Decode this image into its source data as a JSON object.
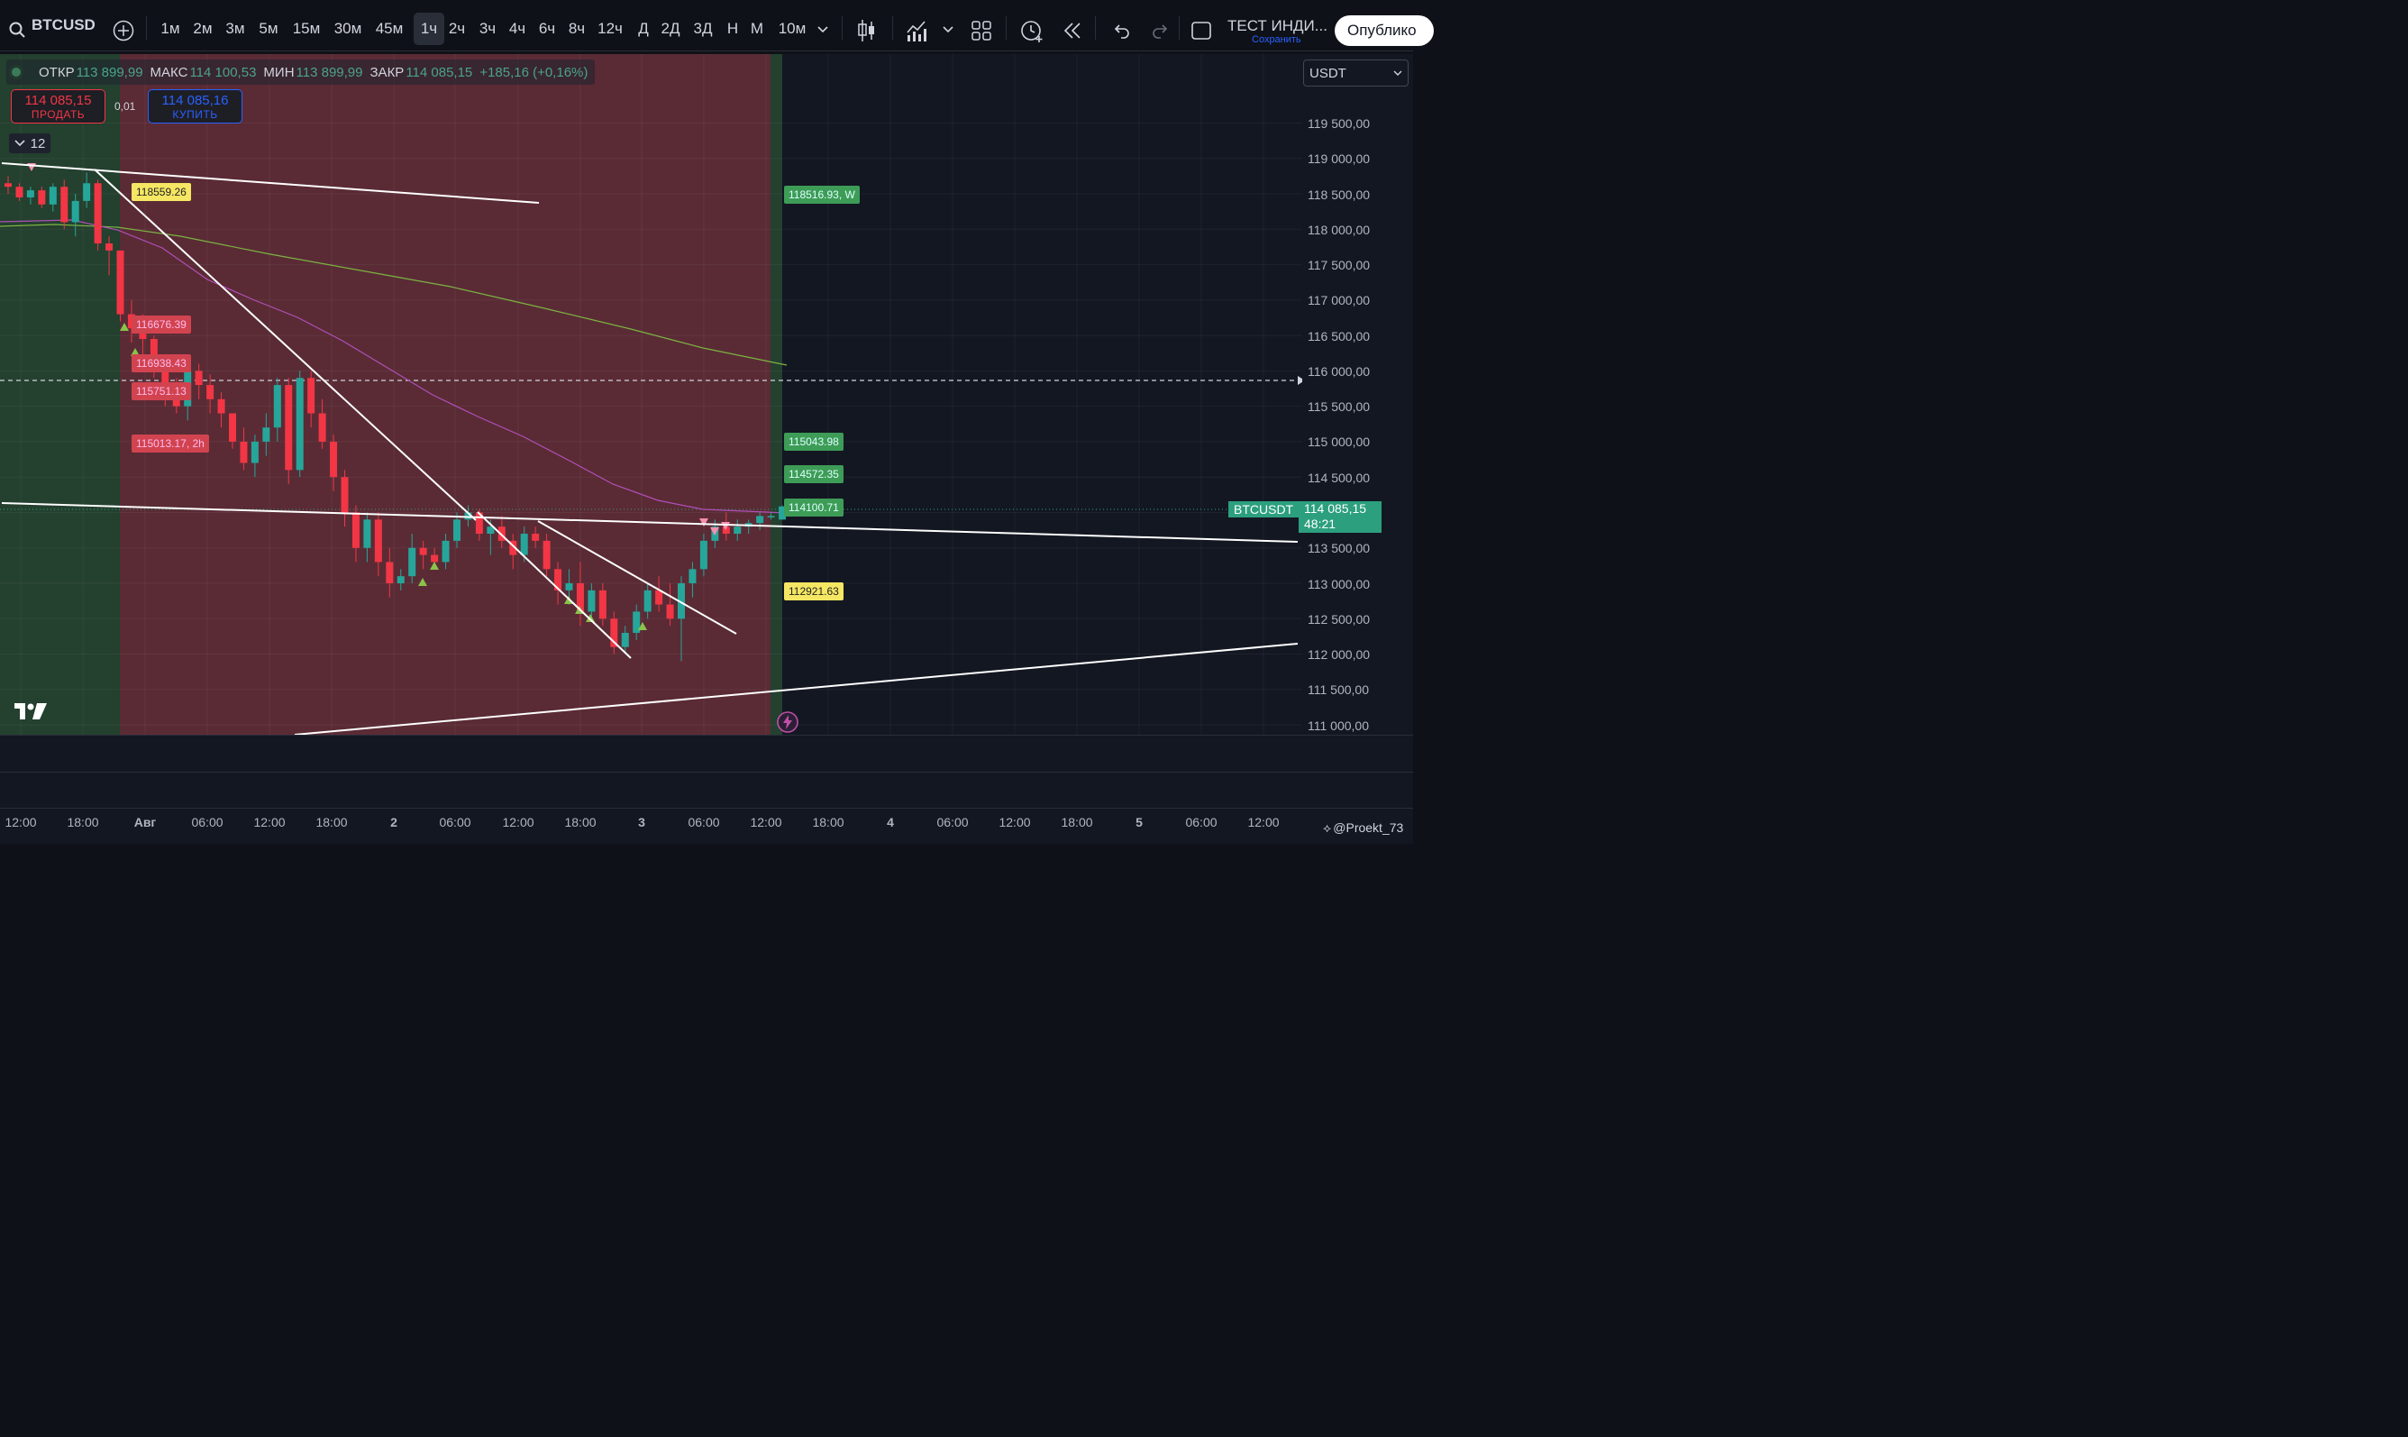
{
  "toolbar": {
    "symbol": "BTCUSD",
    "timeframes": [
      "1м",
      "2м",
      "3м",
      "5м",
      "15м",
      "30м",
      "45м",
      "1ч",
      "2ч",
      "3ч",
      "4ч",
      "6ч",
      "8ч",
      "12ч",
      "Д",
      "2Д",
      "3Д",
      "Н",
      "М",
      "10м"
    ],
    "active_timeframe": "1ч",
    "layout_title": "ТЕСТ ИНДИ...",
    "layout_status": "Сохранить",
    "publish_label": "Опублико"
  },
  "legend": {
    "open_label": "ОТКР",
    "open": "113 899,99",
    "high_label": "МАКС",
    "high": "114 100,53",
    "low_label": "МИН",
    "low": "113 899,99",
    "close_label": "ЗАКР",
    "close": "114 085,15",
    "change": "+185,16 (+0,16%)"
  },
  "trade": {
    "sell_price": "114 085,15",
    "sell_label": "ПРОДАТЬ",
    "spread": "0,01",
    "buy_price": "114 085,16",
    "buy_label": "КУПИТЬ"
  },
  "indicators_count": "12",
  "currency": "USDT",
  "price_axis": [
    "119 500,00",
    "119 000,00",
    "118 500,00",
    "118 000,00",
    "117 500,00",
    "117 000,00",
    "116 500,00",
    "116 000,00",
    "115 500,00",
    "115 000,00",
    "114 500,00",
    "114 000,00",
    "113 500,00",
    "113 000,00",
    "112 500,00",
    "112 000,00",
    "111 500,00",
    "111 000,00"
  ],
  "time_axis": [
    "12:00",
    "18:00",
    "Авг",
    "06:00",
    "12:00",
    "18:00",
    "2",
    "06:00",
    "12:00",
    "18:00",
    "3",
    "06:00",
    "12:00",
    "18:00",
    "4",
    "06:00",
    "12:00",
    "18:00",
    "5",
    "06:00",
    "12:00"
  ],
  "level_tags_left": [
    {
      "text": "118559.26",
      "color": "yellow"
    },
    {
      "text": "116676.39",
      "color": "red"
    },
    {
      "text": "116938.43",
      "color": "red"
    },
    {
      "text": "115751.13",
      "color": "red"
    },
    {
      "text": "115013.17, 2h",
      "color": "red"
    }
  ],
  "level_tags_right": [
    {
      "text": "118516.93, W",
      "color": "green"
    },
    {
      "text": "115043.98",
      "color": "green"
    },
    {
      "text": "114572.35",
      "color": "green"
    },
    {
      "text": "114100.71",
      "color": "green"
    },
    {
      "text": "112921.63",
      "color": "yellow"
    }
  ],
  "last_price": {
    "symbol": "BTCUSDT",
    "price": "114 085,15",
    "countdown": "48:21"
  },
  "watermark": "@Proekt_73",
  "colors": {
    "up": "#26a69a",
    "down": "#f23645",
    "bg": "#131722",
    "sma_purple": "#b14fb8",
    "sma_green": "#7cb342"
  },
  "chart_data": {
    "type": "candlestick",
    "price_range": [
      110900,
      119900
    ],
    "candles_ohlc_approx": [
      [
        118650,
        118750,
        118500,
        118600
      ],
      [
        118600,
        118650,
        118400,
        118450
      ],
      [
        118450,
        118600,
        118350,
        118550
      ],
      [
        118550,
        118600,
        118300,
        118350
      ],
      [
        118350,
        118650,
        118250,
        118600
      ],
      [
        118600,
        118700,
        118000,
        118100
      ],
      [
        118100,
        118500,
        117900,
        118400
      ],
      [
        118400,
        118800,
        118300,
        118650
      ],
      [
        118650,
        118700,
        117700,
        117800
      ],
      [
        117800,
        117900,
        117350,
        117700
      ],
      [
        117700,
        117700,
        116700,
        116800
      ],
      [
        116800,
        117000,
        116400,
        116600
      ],
      [
        116600,
        116800,
        116200,
        116450
      ],
      [
        116450,
        116500,
        115900,
        116000
      ],
      [
        116000,
        116200,
        115500,
        115700
      ],
      [
        115700,
        115900,
        115400,
        115500
      ],
      [
        115500,
        116100,
        115300,
        116000
      ],
      [
        116000,
        116100,
        115600,
        115800
      ],
      [
        115800,
        115950,
        115400,
        115600
      ],
      [
        115600,
        115700,
        115200,
        115400
      ],
      [
        115400,
        115400,
        114900,
        115000
      ],
      [
        115000,
        115200,
        114600,
        114700
      ],
      [
        114700,
        115100,
        114500,
        115000
      ],
      [
        115000,
        115400,
        114800,
        115200
      ],
      [
        115200,
        115900,
        115000,
        115800
      ],
      [
        115800,
        115900,
        114400,
        114600
      ],
      [
        114600,
        116000,
        114500,
        115900
      ],
      [
        115900,
        116000,
        115200,
        115400
      ],
      [
        115400,
        115600,
        114900,
        115000
      ],
      [
        115000,
        115100,
        114300,
        114500
      ],
      [
        114500,
        114600,
        113800,
        114000
      ],
      [
        114000,
        114100,
        113300,
        113500
      ],
      [
        113500,
        114000,
        113300,
        113900
      ],
      [
        113900,
        114000,
        113100,
        113300
      ],
      [
        113300,
        113500,
        112800,
        113000
      ],
      [
        113000,
        113200,
        112900,
        113100
      ],
      [
        113100,
        113700,
        113000,
        113500
      ],
      [
        113500,
        113600,
        113200,
        113400
      ],
      [
        113400,
        113500,
        113200,
        113300
      ],
      [
        113300,
        113700,
        113200,
        113600
      ],
      [
        113600,
        114000,
        113500,
        113900
      ],
      [
        113900,
        114100,
        113800,
        114000
      ],
      [
        114000,
        114050,
        113600,
        113700
      ],
      [
        113700,
        113900,
        113400,
        113800
      ],
      [
        113800,
        113950,
        113500,
        113600
      ],
      [
        113600,
        113700,
        113200,
        113400
      ],
      [
        113400,
        113800,
        113300,
        113700
      ],
      [
        113700,
        113800,
        113500,
        113600
      ],
      [
        113600,
        113700,
        113100,
        113200
      ],
      [
        113200,
        113300,
        112700,
        112900
      ],
      [
        112900,
        113200,
        112700,
        113000
      ],
      [
        113000,
        113300,
        112400,
        112600
      ],
      [
        112600,
        113000,
        112500,
        112900
      ],
      [
        112900,
        113000,
        112400,
        112500
      ],
      [
        112500,
        112600,
        112000,
        112100
      ],
      [
        112100,
        112400,
        112000,
        112300
      ],
      [
        112300,
        112700,
        112200,
        112600
      ],
      [
        112600,
        113000,
        112500,
        112900
      ],
      [
        112900,
        113100,
        112600,
        112700
      ],
      [
        112700,
        113000,
        112400,
        112500
      ],
      [
        112500,
        113100,
        111900,
        113000
      ],
      [
        113000,
        113300,
        112800,
        113200
      ],
      [
        113200,
        113700,
        113100,
        113600
      ],
      [
        113600,
        113900,
        113500,
        113800
      ],
      [
        113800,
        114000,
        113600,
        113700
      ],
      [
        113700,
        113900,
        113600,
        113800
      ],
      [
        113800,
        113900,
        113700,
        113850
      ],
      [
        113850,
        114000,
        113750,
        113950
      ],
      [
        113950,
        114000,
        113900,
        113950
      ],
      [
        113900,
        114100,
        113900,
        114085
      ]
    ]
  }
}
